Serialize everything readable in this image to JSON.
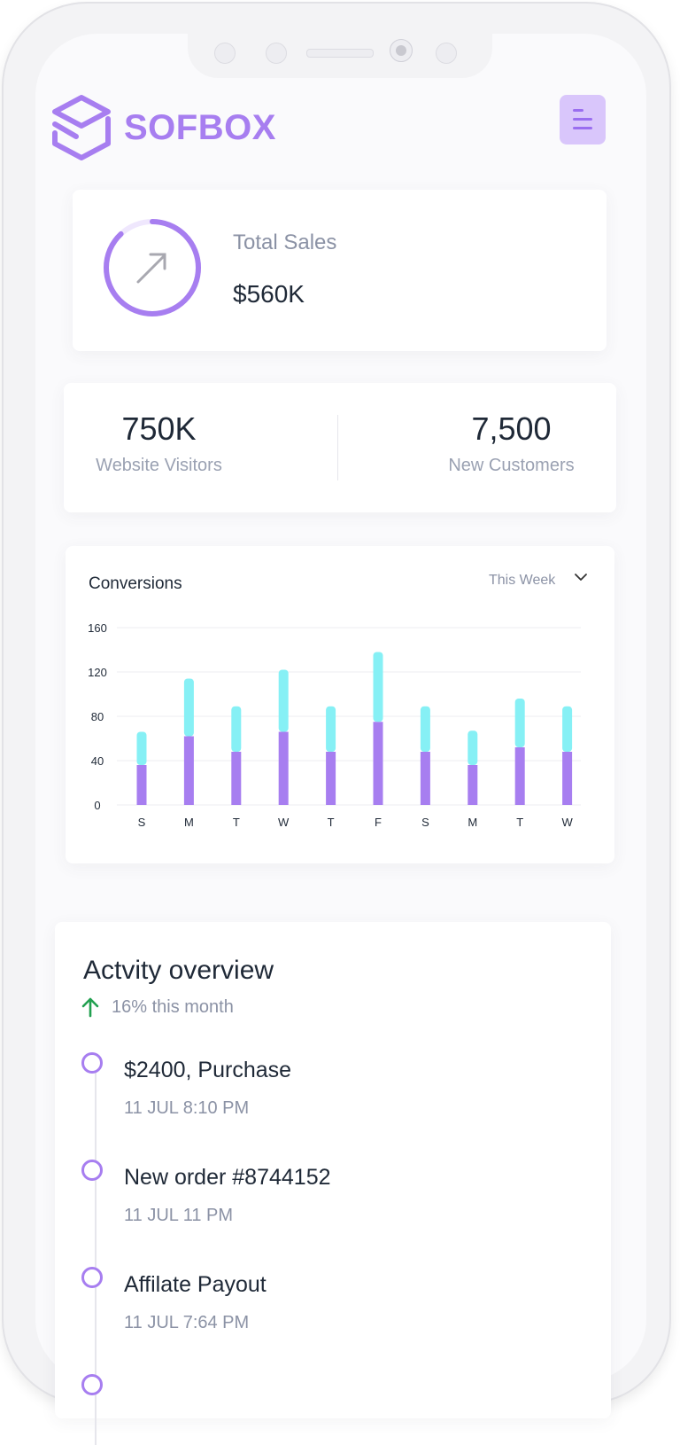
{
  "brand": {
    "name": "SOFBOX",
    "accent": "#a77ef0"
  },
  "header": {
    "menu_icon": "menu-icon"
  },
  "sales_card": {
    "label": "Total Sales",
    "value": "$560K",
    "icon": "trend-arrow-icon",
    "progress_fraction": 0.88
  },
  "stats": [
    {
      "value": "750K",
      "label": "Website Visitors"
    },
    {
      "value": "7,500",
      "label": "New Customers"
    }
  ],
  "conversions": {
    "title": "Conversions",
    "period": "This Week",
    "period_icon": "chevron-down-icon",
    "chart_data": {
      "type": "bar",
      "stacked": true,
      "categories": [
        "S",
        "M",
        "T",
        "W",
        "T",
        "F",
        "S",
        "M",
        "T",
        "W"
      ],
      "series": [
        {
          "values": [
            36,
            62,
            48,
            66,
            48,
            75,
            48,
            36,
            52,
            48
          ],
          "color": "#a77ef0"
        },
        {
          "values": [
            30,
            52,
            41,
            56,
            41,
            63,
            41,
            31,
            44,
            41
          ],
          "color": "#86f0f5"
        }
      ],
      "yticks": [
        0,
        40,
        80,
        120,
        160
      ],
      "ylim": [
        0,
        160
      ],
      "grid": true
    }
  },
  "activity": {
    "title": "Actvity overview",
    "change": "16% this month",
    "change_icon": "arrow-up-icon",
    "items": [
      {
        "title": "$2400, Purchase",
        "date": "11 JUL 8:10 PM"
      },
      {
        "title": "New order #8744152",
        "date": "11 JUL 11 PM"
      },
      {
        "title": "Affilate Payout",
        "date": "11 JUL 7:64 PM"
      }
    ]
  }
}
